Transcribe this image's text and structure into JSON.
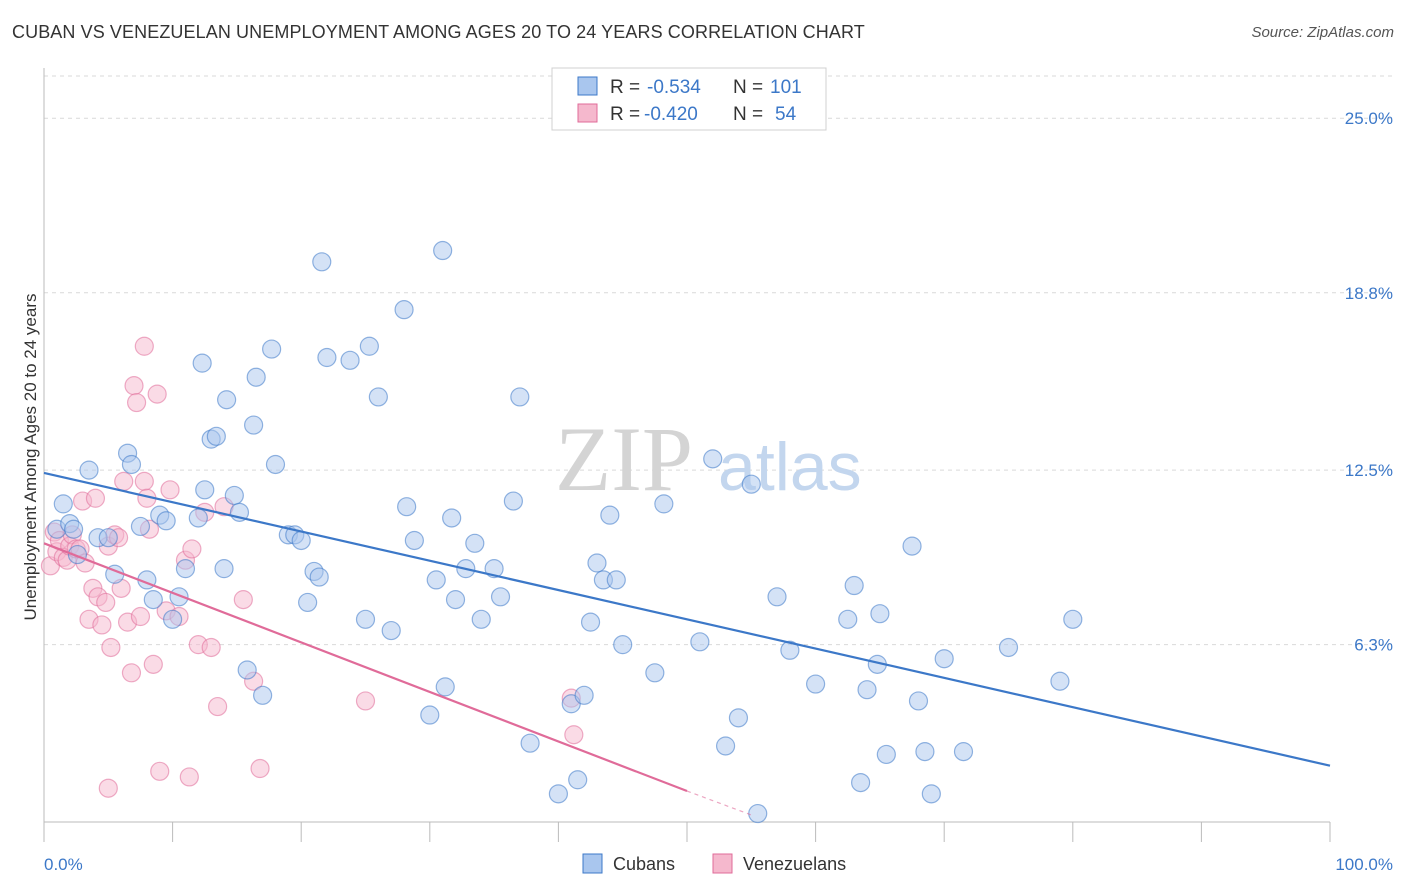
{
  "title": "CUBAN VS VENEZUELAN UNEMPLOYMENT AMONG AGES 20 TO 24 YEARS CORRELATION CHART",
  "source": "Source: ZipAtlas.com",
  "watermark": {
    "zip": "ZIP",
    "atlas": "atlas"
  },
  "colors": {
    "blue": "#3c78c8",
    "blue_fill": "#a9c6ee",
    "pink": "#e06b99",
    "pink_fill": "#f5b8cd",
    "grid": "#d9d9d9"
  },
  "legend": {
    "rows": [
      {
        "r_label": "R = ",
        "r_value": "-0.534",
        "n_label": "N = ",
        "n_value": "101"
      },
      {
        "r_label": "R = ",
        "r_value": "-0.420",
        "n_label": "N = ",
        "n_value": "54"
      }
    ]
  },
  "bottom_legend": [
    "Cubans",
    "Venezuelans"
  ],
  "chart_data": {
    "type": "scatter",
    "title": "CUBAN VS VENEZUELAN UNEMPLOYMENT AMONG AGES 20 TO 24 YEARS CORRELATION CHART",
    "xlabel": "",
    "ylabel": "Unemployment Among Ages 20 to 24 years",
    "xlim": [
      0,
      100
    ],
    "ylim": [
      0,
      26.5
    ],
    "x_tick_labels": [
      "0.0%",
      "100.0%"
    ],
    "y_ticks": [
      6.3,
      12.5,
      18.8,
      25.0
    ],
    "y_tick_labels": [
      "6.3%",
      "12.5%",
      "18.8%",
      "25.0%"
    ],
    "grid": true,
    "legend_position": "top-center",
    "series": [
      {
        "name": "Cubans",
        "color": "#3c78c8",
        "r": -0.534,
        "n": 101,
        "trend": {
          "x": [
            0,
            100
          ],
          "y": [
            12.4,
            2.0
          ]
        },
        "points": [
          [
            1,
            10.4
          ],
          [
            1.5,
            11.3
          ],
          [
            2,
            10.6
          ],
          [
            2.3,
            10.4
          ],
          [
            2.6,
            9.5
          ],
          [
            3.5,
            12.5
          ],
          [
            4.2,
            10.1
          ],
          [
            5,
            10.1
          ],
          [
            5.5,
            8.8
          ],
          [
            6.5,
            13.1
          ],
          [
            6.8,
            12.7
          ],
          [
            7.5,
            10.5
          ],
          [
            8,
            8.6
          ],
          [
            8.5,
            7.9
          ],
          [
            9,
            10.9
          ],
          [
            9.5,
            10.7
          ],
          [
            10,
            7.2
          ],
          [
            10.5,
            8.0
          ],
          [
            11,
            9.0
          ],
          [
            12,
            10.8
          ],
          [
            12.3,
            16.3
          ],
          [
            12.5,
            11.8
          ],
          [
            13,
            13.6
          ],
          [
            13.4,
            13.7
          ],
          [
            14,
            9.0
          ],
          [
            14.2,
            15.0
          ],
          [
            14.8,
            11.6
          ],
          [
            15.2,
            11.0
          ],
          [
            15.8,
            5.4
          ],
          [
            16.3,
            14.1
          ],
          [
            16.5,
            15.8
          ],
          [
            17,
            4.5
          ],
          [
            17.7,
            16.8
          ],
          [
            18,
            12.7
          ],
          [
            19,
            10.2
          ],
          [
            19.5,
            10.2
          ],
          [
            20,
            10.0
          ],
          [
            20.5,
            7.8
          ],
          [
            21,
            8.9
          ],
          [
            21.4,
            8.7
          ],
          [
            21.6,
            19.9
          ],
          [
            22,
            16.5
          ],
          [
            23.8,
            16.4
          ],
          [
            25,
            7.2
          ],
          [
            25.3,
            16.9
          ],
          [
            26,
            15.1
          ],
          [
            27,
            6.8
          ],
          [
            28,
            18.2
          ],
          [
            28.2,
            11.2
          ],
          [
            28.8,
            10.0
          ],
          [
            30,
            3.8
          ],
          [
            30.5,
            8.6
          ],
          [
            31,
            20.3
          ],
          [
            31.7,
            10.8
          ],
          [
            32,
            7.9
          ],
          [
            32.8,
            9.0
          ],
          [
            33.5,
            9.9
          ],
          [
            34,
            7.2
          ],
          [
            35,
            9.0
          ],
          [
            35.5,
            8.0
          ],
          [
            36.5,
            11.4
          ],
          [
            37,
            15.1
          ],
          [
            37.8,
            2.8
          ],
          [
            40,
            1.0
          ],
          [
            41,
            4.2
          ],
          [
            41.5,
            1.5
          ],
          [
            42,
            4.5
          ],
          [
            42.5,
            7.1
          ],
          [
            43,
            9.2
          ],
          [
            43.5,
            8.6
          ],
          [
            44,
            10.9
          ],
          [
            44.5,
            8.6
          ],
          [
            45,
            6.3
          ],
          [
            47.5,
            5.3
          ],
          [
            51,
            6.4
          ],
          [
            52,
            12.9
          ],
          [
            53,
            2.7
          ],
          [
            54,
            3.7
          ],
          [
            55,
            12.0
          ],
          [
            57,
            8.0
          ],
          [
            58,
            6.1
          ],
          [
            60,
            4.9
          ],
          [
            62.5,
            7.2
          ],
          [
            63,
            8.4
          ],
          [
            63.5,
            1.4
          ],
          [
            64,
            4.7
          ],
          [
            65,
            7.4
          ],
          [
            65.5,
            2.4
          ],
          [
            67.5,
            9.8
          ],
          [
            68,
            4.3
          ],
          [
            68.5,
            2.5
          ],
          [
            69,
            1.0
          ],
          [
            70,
            5.8
          ],
          [
            71.5,
            2.5
          ],
          [
            75,
            6.2
          ],
          [
            79,
            5.0
          ],
          [
            80,
            7.2
          ],
          [
            55.5,
            0.3
          ],
          [
            31.2,
            4.8
          ],
          [
            48.2,
            11.3
          ],
          [
            64.8,
            5.6
          ]
        ]
      },
      {
        "name": "Venezuelans",
        "color": "#e06b99",
        "r": -0.42,
        "n": 54,
        "trend": {
          "x": [
            0,
            50
          ],
          "y": [
            9.9,
            1.1
          ]
        },
        "trend_dashed": {
          "x": [
            50,
            55
          ],
          "y": [
            1.1,
            0.25
          ]
        },
        "points": [
          [
            0.5,
            9.1
          ],
          [
            0.8,
            10.3
          ],
          [
            1,
            9.6
          ],
          [
            1.2,
            10.0
          ],
          [
            1.5,
            9.4
          ],
          [
            1.8,
            9.3
          ],
          [
            2,
            9.8
          ],
          [
            2.2,
            10.2
          ],
          [
            2.5,
            9.7
          ],
          [
            2.8,
            9.7
          ],
          [
            3,
            11.4
          ],
          [
            3.2,
            9.2
          ],
          [
            3.5,
            7.2
          ],
          [
            3.8,
            8.3
          ],
          [
            4,
            11.5
          ],
          [
            4.2,
            8.0
          ],
          [
            4.5,
            7.0
          ],
          [
            4.8,
            7.8
          ],
          [
            5,
            9.8
          ],
          [
            5.2,
            6.2
          ],
          [
            5.5,
            10.2
          ],
          [
            5.8,
            10.1
          ],
          [
            6,
            8.3
          ],
          [
            6.2,
            12.1
          ],
          [
            6.5,
            7.1
          ],
          [
            6.8,
            5.3
          ],
          [
            7,
            15.5
          ],
          [
            7.2,
            14.9
          ],
          [
            7.5,
            7.3
          ],
          [
            7.8,
            12.1
          ],
          [
            8,
            11.5
          ],
          [
            8.2,
            10.4
          ],
          [
            8.5,
            5.6
          ],
          [
            8.8,
            15.2
          ],
          [
            9,
            1.8
          ],
          [
            9.5,
            7.5
          ],
          [
            9.8,
            11.8
          ],
          [
            10.5,
            7.3
          ],
          [
            11,
            9.3
          ],
          [
            11.3,
            1.6
          ],
          [
            11.5,
            9.7
          ],
          [
            12,
            6.3
          ],
          [
            12.5,
            11.0
          ],
          [
            13,
            6.2
          ],
          [
            13.5,
            4.1
          ],
          [
            14,
            11.2
          ],
          [
            15.5,
            7.9
          ],
          [
            16.3,
            5.0
          ],
          [
            16.8,
            1.9
          ],
          [
            25,
            4.3
          ],
          [
            41,
            4.4
          ],
          [
            41.2,
            3.1
          ],
          [
            5,
            1.2
          ],
          [
            7.8,
            16.9
          ]
        ]
      }
    ]
  }
}
